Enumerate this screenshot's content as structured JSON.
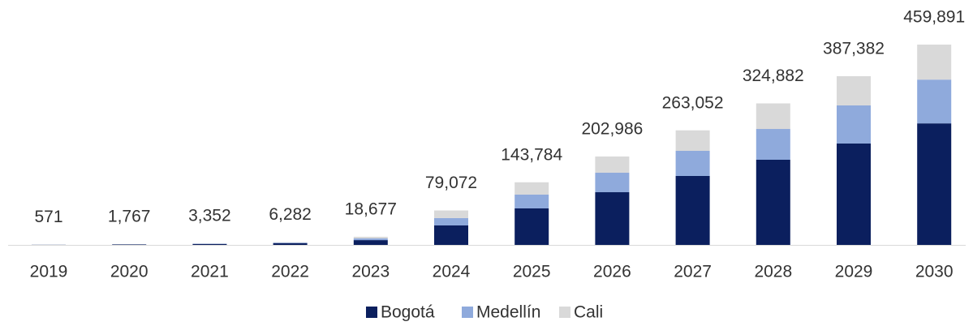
{
  "chart_data": {
    "type": "bar",
    "stacked": true,
    "categories": [
      "2019",
      "2020",
      "2021",
      "2022",
      "2023",
      "2024",
      "2025",
      "2026",
      "2027",
      "2028",
      "2029",
      "2030"
    ],
    "series": [
      {
        "name": "Bogotá",
        "color": "#0b1f5e",
        "values": [
          300,
          1000,
          2000,
          4000,
          11000,
          44700,
          83800,
          121000,
          158300,
          195500,
          232800,
          279000
        ]
      },
      {
        "name": "Medellín",
        "color": "#8faadc",
        "values": [
          150,
          400,
          800,
          1300,
          4000,
          16800,
          31700,
          44700,
          57700,
          70700,
          87500,
          100500
        ]
      },
      {
        "name": "Cali",
        "color": "#d9d9d9",
        "values": [
          121,
          367,
          552,
          982,
          3677,
          17572,
          28284,
          37286,
          47052,
          58682,
          67082,
          80391
        ]
      }
    ],
    "totals": [
      571,
      1767,
      3352,
      6282,
      18677,
      79072,
      143784,
      202986,
      263052,
      324882,
      387382,
      459891
    ],
    "total_labels": [
      "571",
      "1,767",
      "3,352",
      "6,282",
      "18,677",
      "79,072",
      "143,784",
      "202,986",
      "263,052",
      "324,882",
      "387,382",
      "459,891"
    ],
    "legend": "bottom"
  }
}
